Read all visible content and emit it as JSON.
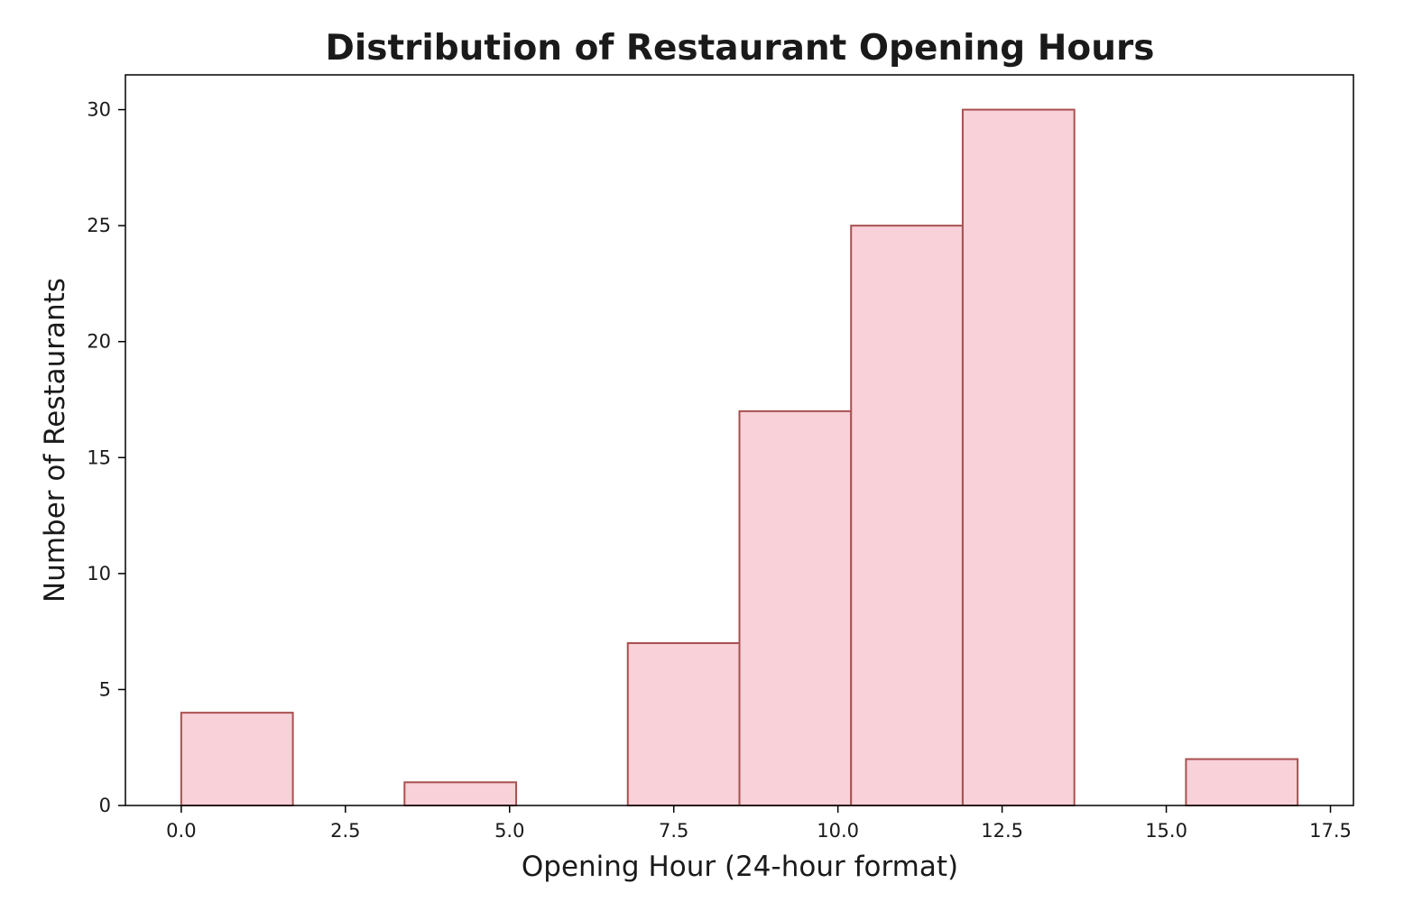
{
  "chart_data": {
    "type": "bar",
    "subtype": "histogram",
    "title": "Distribution of Restaurant Opening Hours",
    "xlabel": "Opening Hour (24-hour format)",
    "ylabel": "Number of Restaurants",
    "bins": [
      {
        "start": 0.0,
        "end": 1.7,
        "count": 4
      },
      {
        "start": 1.7,
        "end": 3.4,
        "count": 0
      },
      {
        "start": 3.4,
        "end": 5.1,
        "count": 1
      },
      {
        "start": 5.1,
        "end": 6.8,
        "count": 0
      },
      {
        "start": 6.8,
        "end": 8.5,
        "count": 7
      },
      {
        "start": 8.5,
        "end": 10.2,
        "count": 17
      },
      {
        "start": 10.2,
        "end": 11.9,
        "count": 25
      },
      {
        "start": 11.9,
        "end": 13.6,
        "count": 30
      },
      {
        "start": 13.6,
        "end": 15.3,
        "count": 0
      },
      {
        "start": 15.3,
        "end": 17.0,
        "count": 2
      }
    ],
    "xlim": [
      -0.85,
      17.85
    ],
    "ylim": [
      0,
      31.5
    ],
    "xticks": [
      0.0,
      2.5,
      5.0,
      7.5,
      10.0,
      12.5,
      15.0,
      17.5
    ],
    "xtick_labels": [
      "0.0",
      "2.5",
      "5.0",
      "7.5",
      "10.0",
      "12.5",
      "15.0",
      "17.5"
    ],
    "yticks": [
      0,
      5,
      10,
      15,
      20,
      25,
      30
    ],
    "ytick_labels": [
      "0",
      "5",
      "10",
      "15",
      "20",
      "25",
      "30"
    ],
    "grid": false,
    "legend": "none",
    "colors": {
      "bar_fill": "#f8d1d9",
      "bar_edge": "#a9504f",
      "axis": "#000000"
    }
  }
}
